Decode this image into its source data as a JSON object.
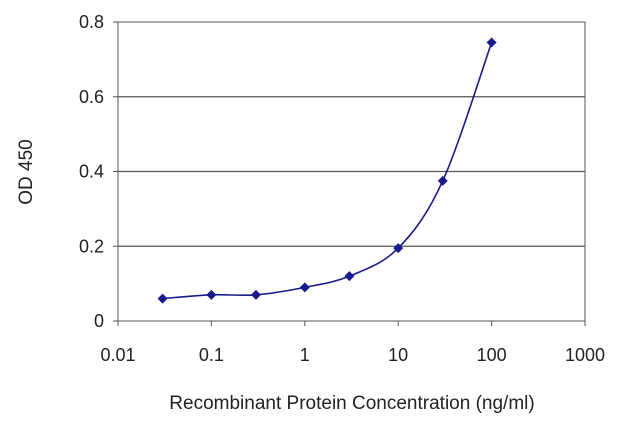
{
  "chart_data": {
    "type": "scatter",
    "title": "",
    "xlabel": "Recombinant Protein Concentration (ng/ml)",
    "ylabel": "OD 450",
    "x_scale": "log",
    "xlim": [
      0.01,
      1000
    ],
    "ylim": [
      0,
      0.8
    ],
    "x_ticks": [
      "0.01",
      "0.1",
      "1",
      "10",
      "100",
      "1000"
    ],
    "y_ticks": [
      "0",
      "0.2",
      "0.4",
      "0.6",
      "0.8"
    ],
    "grid": "horizontal",
    "legend": "none",
    "series": [
      {
        "x": [
          0.03,
          0.1,
          0.3,
          1,
          3,
          10,
          30,
          100
        ],
        "y": [
          0.06,
          0.07,
          0.07,
          0.09,
          0.12,
          0.195,
          0.375,
          0.745
        ],
        "color": "#1a1a8c",
        "marker": "diamond",
        "fit_line": "smooth"
      }
    ]
  }
}
